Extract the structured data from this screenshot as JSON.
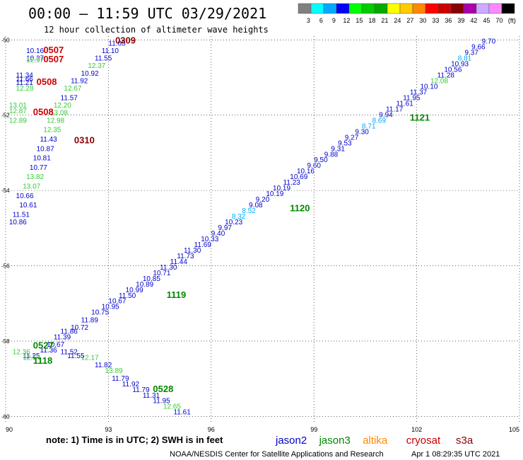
{
  "header": {
    "title": "00:00 – 11:59 UTC 03/29/2021",
    "subtitle": "12 hour collection of altimeter wave heights"
  },
  "colorbar": {
    "colors": [
      "#808080",
      "#00ffff",
      "#00aaff",
      "#0000ff",
      "#00ff00",
      "#00cc00",
      "#00aa00",
      "#ffff00",
      "#ffcc00",
      "#ff8800",
      "#ff0000",
      "#cc0000",
      "#880000",
      "#aa00aa",
      "#ccaaff",
      "#ff88ff",
      "#000000"
    ],
    "labels": [
      "3",
      "6",
      "9",
      "12",
      "15",
      "18",
      "21",
      "24",
      "27",
      "30",
      "33",
      "36",
      "39",
      "42",
      "45",
      "70",
      "(ft)"
    ]
  },
  "footer": {
    "note": "note: 1) Time is in UTC; 2) SWH is in feet",
    "credit": "NOAA/NESDIS Center for Satellite Applications and Research",
    "timestamp": "Apr 1 08:29:35 UTC 2021"
  },
  "legend": [
    {
      "name": "jason2",
      "color": "#0000cc"
    },
    {
      "name": "jason3",
      "color": "#008800"
    },
    {
      "name": "altika",
      "color": "#ff8800"
    },
    {
      "name": "cryosat",
      "color": "#cc0000"
    },
    {
      "name": "s3a",
      "color": "#880000"
    }
  ],
  "chart_data": {
    "type": "scatter",
    "xlim": [
      90,
      105
    ],
    "ylim": [
      -60.2,
      -49.9
    ],
    "xticks": [
      "90",
      "93",
      "96",
      "99",
      "102",
      "105"
    ],
    "yticks": [
      "-50",
      "-52",
      "-54",
      "-56",
      "-58",
      "-60"
    ],
    "xtick_values": [
      90,
      93,
      96,
      99,
      102,
      105
    ],
    "ytick_values": [
      -50,
      -52,
      -54,
      -56,
      -58,
      -60
    ],
    "grid": true,
    "points": [
      {
        "x": 103.9,
        "y": -50.1,
        "label": "9.70",
        "color": "#0000cc"
      },
      {
        "x": 103.6,
        "y": -50.25,
        "label": "9.66",
        "color": "#0000cc"
      },
      {
        "x": 103.4,
        "y": -50.4,
        "label": "9.37",
        "color": "#0000cc"
      },
      {
        "x": 103.2,
        "y": -50.55,
        "label": "8.81",
        "color": "#00aaff"
      },
      {
        "x": 103.0,
        "y": -50.7,
        "label": "10.93",
        "color": "#0000cc"
      },
      {
        "x": 102.8,
        "y": -50.85,
        "label": "10.56",
        "color": "#0000cc"
      },
      {
        "x": 102.6,
        "y": -51.0,
        "label": "11.28",
        "color": "#0000cc"
      },
      {
        "x": 102.4,
        "y": -51.15,
        "label": "12.08",
        "color": "#33cc33"
      },
      {
        "x": 102.1,
        "y": -51.3,
        "label": "10.10",
        "color": "#0000cc"
      },
      {
        "x": 101.8,
        "y": -51.45,
        "label": "11.37",
        "color": "#0000cc"
      },
      {
        "x": 101.6,
        "y": -51.6,
        "label": "11.95",
        "color": "#0000cc"
      },
      {
        "x": 101.4,
        "y": -51.75,
        "label": "11.61",
        "color": "#0000cc"
      },
      {
        "x": 101.1,
        "y": -51.9,
        "label": "11.17",
        "color": "#0000cc"
      },
      {
        "x": 100.9,
        "y": -52.05,
        "label": "9.94",
        "color": "#0000cc"
      },
      {
        "x": 100.7,
        "y": -52.2,
        "label": "8.69",
        "color": "#00aaff"
      },
      {
        "x": 100.4,
        "y": -52.35,
        "label": "8.71",
        "color": "#00aaff"
      },
      {
        "x": 100.2,
        "y": -52.5,
        "label": "9.30",
        "color": "#0000cc"
      },
      {
        "x": 99.9,
        "y": -52.65,
        "label": "9.27",
        "color": "#0000cc"
      },
      {
        "x": 99.7,
        "y": -52.8,
        "label": "9.53",
        "color": "#0000cc"
      },
      {
        "x": 99.5,
        "y": -52.95,
        "label": "9.31",
        "color": "#0000cc"
      },
      {
        "x": 99.3,
        "y": -53.1,
        "label": "9.88",
        "color": "#0000cc"
      },
      {
        "x": 99.0,
        "y": -53.25,
        "label": "9.50",
        "color": "#0000cc"
      },
      {
        "x": 98.8,
        "y": -53.4,
        "label": "9.60",
        "color": "#0000cc"
      },
      {
        "x": 98.5,
        "y": -53.55,
        "label": "10.16",
        "color": "#0000cc"
      },
      {
        "x": 98.3,
        "y": -53.7,
        "label": "10.69",
        "color": "#0000cc"
      },
      {
        "x": 98.1,
        "y": -53.85,
        "label": "11.23",
        "color": "#0000cc"
      },
      {
        "x": 97.8,
        "y": -54.0,
        "label": "10.19",
        "color": "#0000cc"
      },
      {
        "x": 97.6,
        "y": -54.15,
        "label": "10.19",
        "color": "#0000cc"
      },
      {
        "x": 97.3,
        "y": -54.3,
        "label": "9.20",
        "color": "#0000cc"
      },
      {
        "x": 97.1,
        "y": -54.45,
        "label": "9.08",
        "color": "#0000cc"
      },
      {
        "x": 96.9,
        "y": -54.6,
        "label": "8.52",
        "color": "#00aaff"
      },
      {
        "x": 96.6,
        "y": -54.75,
        "label": "8.32",
        "color": "#00aaff"
      },
      {
        "x": 96.4,
        "y": -54.9,
        "label": "10.23",
        "color": "#0000cc"
      },
      {
        "x": 96.2,
        "y": -55.05,
        "label": "9.97",
        "color": "#0000cc"
      },
      {
        "x": 96.0,
        "y": -55.2,
        "label": "9.40",
        "color": "#0000cc"
      },
      {
        "x": 95.7,
        "y": -55.35,
        "label": "10.33",
        "color": "#0000cc"
      },
      {
        "x": 95.5,
        "y": -55.5,
        "label": "11.69",
        "color": "#0000cc"
      },
      {
        "x": 95.2,
        "y": -55.65,
        "label": "11.30",
        "color": "#0000cc"
      },
      {
        "x": 95.0,
        "y": -55.8,
        "label": "11.73",
        "color": "#0000cc"
      },
      {
        "x": 94.8,
        "y": -55.95,
        "label": "11.44",
        "color": "#0000cc"
      },
      {
        "x": 94.5,
        "y": -56.1,
        "label": "11.30",
        "color": "#0000cc"
      },
      {
        "x": 94.3,
        "y": -56.25,
        "label": "10.71",
        "color": "#0000cc"
      },
      {
        "x": 94.0,
        "y": -56.4,
        "label": "10.85",
        "color": "#0000cc"
      },
      {
        "x": 93.8,
        "y": -56.55,
        "label": "10.89",
        "color": "#0000cc"
      },
      {
        "x": 93.5,
        "y": -56.7,
        "label": "10.99",
        "color": "#0000cc"
      },
      {
        "x": 93.3,
        "y": -56.85,
        "label": "11.50",
        "color": "#0000cc"
      },
      {
        "x": 93.0,
        "y": -57.0,
        "label": "10.67",
        "color": "#0000cc"
      },
      {
        "x": 92.8,
        "y": -57.15,
        "label": "10.95",
        "color": "#0000cc"
      },
      {
        "x": 92.5,
        "y": -57.3,
        "label": "10.75",
        "color": "#0000cc"
      },
      {
        "x": 92.2,
        "y": -57.5,
        "label": "11.89",
        "color": "#0000cc"
      },
      {
        "x": 91.9,
        "y": -57.7,
        "label": "10.72",
        "color": "#0000cc"
      },
      {
        "x": 91.6,
        "y": -57.8,
        "label": "11.86",
        "color": "#0000cc"
      },
      {
        "x": 91.4,
        "y": -57.95,
        "label": "11.39",
        "color": "#0000cc"
      },
      {
        "x": 91.2,
        "y": -58.15,
        "label": "10.67",
        "color": "#0000cc"
      },
      {
        "x": 91.0,
        "y": -58.3,
        "label": "11.36",
        "color": "#0000cc"
      },
      {
        "x": 90.5,
        "y": -58.45,
        "label": "11.25",
        "color": "#0000cc"
      },
      {
        "x": 91.6,
        "y": -58.35,
        "label": "11.52",
        "color": "#0000cc"
      },
      {
        "x": 91.8,
        "y": -58.45,
        "label": "11.55",
        "color": "#0000cc"
      },
      {
        "x": 92.2,
        "y": -58.5,
        "label": "12.17",
        "color": "#33cc33"
      },
      {
        "x": 92.6,
        "y": -58.7,
        "label": "11.82",
        "color": "#0000cc"
      },
      {
        "x": 92.9,
        "y": -58.85,
        "label": "13.89",
        "color": "#33cc33"
      },
      {
        "x": 93.1,
        "y": -59.05,
        "label": "11.79",
        "color": "#0000cc"
      },
      {
        "x": 93.4,
        "y": -59.2,
        "label": "11.92",
        "color": "#0000cc"
      },
      {
        "x": 93.7,
        "y": -59.35,
        "label": "11.79",
        "color": "#0000cc"
      },
      {
        "x": 94.0,
        "y": -59.5,
        "label": "11.31",
        "color": "#0000cc"
      },
      {
        "x": 94.3,
        "y": -59.65,
        "label": "11.95",
        "color": "#0000cc"
      },
      {
        "x": 94.6,
        "y": -59.8,
        "label": "12.65",
        "color": "#33cc33"
      },
      {
        "x": 94.9,
        "y": -59.95,
        "label": "11.61",
        "color": "#0000cc"
      },
      {
        "x": 90.2,
        "y": -58.35,
        "label": "12.36",
        "color": "#33cc33"
      },
      {
        "x": 90.5,
        "y": -58.5,
        "label": "12.54",
        "color": "#33cc33"
      },
      {
        "x": 90.6,
        "y": -50.35,
        "label": "10.16",
        "color": "#0000cc"
      },
      {
        "x": 90.6,
        "y": -50.55,
        "label": "10.37",
        "color": "#0000cc"
      },
      {
        "x": 90.6,
        "y": -50.6,
        "label": "12.97",
        "color": "#33cc33"
      },
      {
        "x": 93.0,
        "y": -50.15,
        "label": "11.65",
        "color": "#0000cc"
      },
      {
        "x": 92.8,
        "y": -50.35,
        "label": "11.10",
        "color": "#0000cc"
      },
      {
        "x": 92.6,
        "y": -50.55,
        "label": "11.55",
        "color": "#0000cc"
      },
      {
        "x": 92.4,
        "y": -50.75,
        "label": "12.37",
        "color": "#33cc33"
      },
      {
        "x": 92.2,
        "y": -50.95,
        "label": "10.92",
        "color": "#0000cc"
      },
      {
        "x": 91.9,
        "y": -51.15,
        "label": "11.92",
        "color": "#0000cc"
      },
      {
        "x": 91.7,
        "y": -51.35,
        "label": "12.67",
        "color": "#33cc33"
      },
      {
        "x": 91.6,
        "y": -51.6,
        "label": "11.57",
        "color": "#0000cc"
      },
      {
        "x": 91.4,
        "y": -51.8,
        "label": "12.20",
        "color": "#33cc33"
      },
      {
        "x": 91.3,
        "y": -52.0,
        "label": "13.08",
        "color": "#33cc33"
      },
      {
        "x": 91.2,
        "y": -52.2,
        "label": "12.98",
        "color": "#33cc33"
      },
      {
        "x": 91.1,
        "y": -52.45,
        "label": "12.35",
        "color": "#33cc33"
      },
      {
        "x": 91.0,
        "y": -52.7,
        "label": "11.43",
        "color": "#0000cc"
      },
      {
        "x": 90.9,
        "y": -52.95,
        "label": "10.87",
        "color": "#0000cc"
      },
      {
        "x": 90.8,
        "y": -53.2,
        "label": "10.81",
        "color": "#0000cc"
      },
      {
        "x": 90.7,
        "y": -53.45,
        "label": "10.77",
        "color": "#0000cc"
      },
      {
        "x": 90.6,
        "y": -53.7,
        "label": "13.82",
        "color": "#33cc33"
      },
      {
        "x": 90.5,
        "y": -53.95,
        "label": "13.07",
        "color": "#33cc33"
      },
      {
        "x": 90.3,
        "y": -54.2,
        "label": "10.66",
        "color": "#0000cc"
      },
      {
        "x": 90.4,
        "y": -54.45,
        "label": "10.61",
        "color": "#0000cc"
      },
      {
        "x": 90.2,
        "y": -54.7,
        "label": "11.51",
        "color": "#0000cc"
      },
      {
        "x": 90.1,
        "y": -54.9,
        "label": "10.86",
        "color": "#0000cc"
      },
      {
        "x": 90.3,
        "y": -51.0,
        "label": "11.34",
        "color": "#0000cc"
      },
      {
        "x": 90.3,
        "y": -51.1,
        "label": "11.66",
        "color": "#0000cc"
      },
      {
        "x": 90.3,
        "y": -51.2,
        "label": "11.21",
        "color": "#0000cc"
      },
      {
        "x": 90.3,
        "y": -51.35,
        "label": "12.28",
        "color": "#33cc33"
      },
      {
        "x": 90.1,
        "y": -51.8,
        "label": "13.01",
        "color": "#33cc33"
      },
      {
        "x": 90.1,
        "y": -51.95,
        "label": "12.87",
        "color": "#33cc33"
      },
      {
        "x": 90.1,
        "y": -52.2,
        "label": "12.89",
        "color": "#33cc33"
      }
    ],
    "passes": [
      {
        "x": 93.2,
        "y": -50.1,
        "label": "0309",
        "color": "#880000"
      },
      {
        "x": 91.1,
        "y": -50.35,
        "label": "0507",
        "color": "#cc0000"
      },
      {
        "x": 91.1,
        "y": -50.6,
        "label": "0507",
        "color": "#cc0000"
      },
      {
        "x": 90.9,
        "y": -51.2,
        "label": "0508",
        "color": "#cc0000"
      },
      {
        "x": 90.8,
        "y": -52.0,
        "label": "0508",
        "color": "#cc0000"
      },
      {
        "x": 92.0,
        "y": -52.75,
        "label": "0310",
        "color": "#880000"
      },
      {
        "x": 101.8,
        "y": -52.15,
        "label": "1121",
        "color": "#008800"
      },
      {
        "x": 98.3,
        "y": -54.55,
        "label": "1120",
        "color": "#008800"
      },
      {
        "x": 94.7,
        "y": -56.85,
        "label": "1119",
        "color": "#008800"
      },
      {
        "x": 90.8,
        "y": -58.2,
        "label": "0527",
        "color": "#008800"
      },
      {
        "x": 90.8,
        "y": -58.6,
        "label": "1118",
        "color": "#008800"
      },
      {
        "x": 94.3,
        "y": -59.35,
        "label": "0528",
        "color": "#008800"
      }
    ]
  }
}
